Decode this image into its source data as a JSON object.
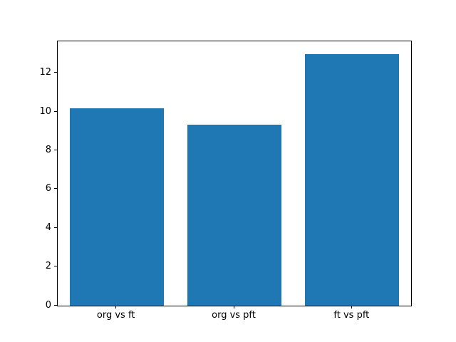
{
  "chart_data": {
    "type": "bar",
    "categories": [
      "org vs ft",
      "org vs pft",
      "ft vs pft"
    ],
    "values": [
      10.2,
      9.33,
      13.0
    ],
    "title": "",
    "xlabel": "",
    "ylabel": "",
    "ylim": [
      0,
      13.65
    ],
    "yticks": [
      0,
      2,
      4,
      6,
      8,
      10,
      12
    ],
    "bar_color": "#1f77b4",
    "bar_width_fraction": 0.8,
    "grid": false,
    "legend_position": "none",
    "background_color": "#ffffff",
    "axis_color": "#000000"
  }
}
